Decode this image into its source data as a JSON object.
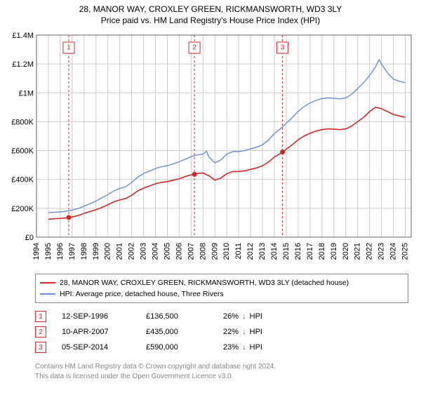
{
  "title": {
    "line1": "28, MANOR WAY, CROXLEY GREEN, RICKMANSWORTH, WD3 3LY",
    "line2": "Price paid vs. HM Land Registry's House Price Index (HPI)"
  },
  "chart": {
    "type": "line",
    "background_color": "#ffffff",
    "grid_color": "#cccccc",
    "axis_color": "#666666",
    "label_fontsize": 11,
    "x": {
      "min": 1994,
      "max": 2025.5,
      "ticks": [
        1994,
        1995,
        1996,
        1997,
        1998,
        1999,
        2000,
        2001,
        2002,
        2003,
        2004,
        2005,
        2006,
        2007,
        2008,
        2009,
        2010,
        2011,
        2012,
        2013,
        2014,
        2015,
        2016,
        2017,
        2018,
        2019,
        2020,
        2021,
        2022,
        2023,
        2024,
        2025
      ]
    },
    "y": {
      "min": 0,
      "max": 1400000,
      "ticks": [
        0,
        200000,
        400000,
        600000,
        800000,
        1000000,
        1200000,
        1400000
      ],
      "tick_labels": [
        "£0",
        "£200K",
        "£400K",
        "£600K",
        "£800K",
        "£1M",
        "£1.2M",
        "£1.4M"
      ]
    },
    "series": [
      {
        "name": "28, MANOR WAY, CROXLEY GREEN, RICKMANSWORTH, WD3 3LY (detached house)",
        "color": "#d62728",
        "line_width": 1.6,
        "points": [
          [
            1995.0,
            125000
          ],
          [
            1995.5,
            128000
          ],
          [
            1996.0,
            130000
          ],
          [
            1996.5,
            133000
          ],
          [
            1996.71,
            136500
          ],
          [
            1997.0,
            140000
          ],
          [
            1997.5,
            150000
          ],
          [
            1998.0,
            165000
          ],
          [
            1998.5,
            178000
          ],
          [
            1999.0,
            190000
          ],
          [
            1999.5,
            205000
          ],
          [
            2000.0,
            225000
          ],
          [
            2000.5,
            245000
          ],
          [
            2001.0,
            258000
          ],
          [
            2001.5,
            268000
          ],
          [
            2002.0,
            290000
          ],
          [
            2002.5,
            320000
          ],
          [
            2003.0,
            340000
          ],
          [
            2003.5,
            355000
          ],
          [
            2004.0,
            370000
          ],
          [
            2004.5,
            380000
          ],
          [
            2005.0,
            385000
          ],
          [
            2005.5,
            395000
          ],
          [
            2006.0,
            405000
          ],
          [
            2006.5,
            420000
          ],
          [
            2007.0,
            432000
          ],
          [
            2007.28,
            435000
          ],
          [
            2007.5,
            440000
          ],
          [
            2008.0,
            445000
          ],
          [
            2008.5,
            425000
          ],
          [
            2009.0,
            395000
          ],
          [
            2009.5,
            410000
          ],
          [
            2010.0,
            440000
          ],
          [
            2010.5,
            455000
          ],
          [
            2011.0,
            455000
          ],
          [
            2011.5,
            460000
          ],
          [
            2012.0,
            470000
          ],
          [
            2012.5,
            480000
          ],
          [
            2013.0,
            495000
          ],
          [
            2013.5,
            520000
          ],
          [
            2014.0,
            555000
          ],
          [
            2014.5,
            580000
          ],
          [
            2014.68,
            590000
          ],
          [
            2015.0,
            610000
          ],
          [
            2015.5,
            640000
          ],
          [
            2016.0,
            675000
          ],
          [
            2016.5,
            700000
          ],
          [
            2017.0,
            720000
          ],
          [
            2017.5,
            735000
          ],
          [
            2018.0,
            745000
          ],
          [
            2018.5,
            750000
          ],
          [
            2019.0,
            748000
          ],
          [
            2019.5,
            745000
          ],
          [
            2020.0,
            750000
          ],
          [
            2020.5,
            770000
          ],
          [
            2021.0,
            800000
          ],
          [
            2021.5,
            830000
          ],
          [
            2022.0,
            870000
          ],
          [
            2022.5,
            900000
          ],
          [
            2023.0,
            890000
          ],
          [
            2023.5,
            870000
          ],
          [
            2024.0,
            850000
          ],
          [
            2024.5,
            840000
          ],
          [
            2025.0,
            830000
          ]
        ]
      },
      {
        "name": "HPI: Average price, detached house, Three Rivers",
        "color": "#6b8fd6",
        "line_width": 1.4,
        "points": [
          [
            1995.0,
            170000
          ],
          [
            1995.5,
            172000
          ],
          [
            1996.0,
            175000
          ],
          [
            1996.5,
            180000
          ],
          [
            1997.0,
            188000
          ],
          [
            1997.5,
            198000
          ],
          [
            1998.0,
            215000
          ],
          [
            1998.5,
            232000
          ],
          [
            1999.0,
            250000
          ],
          [
            1999.5,
            272000
          ],
          [
            2000.0,
            295000
          ],
          [
            2000.5,
            320000
          ],
          [
            2001.0,
            338000
          ],
          [
            2001.5,
            350000
          ],
          [
            2002.0,
            378000
          ],
          [
            2002.5,
            415000
          ],
          [
            2003.0,
            440000
          ],
          [
            2003.5,
            458000
          ],
          [
            2004.0,
            475000
          ],
          [
            2004.5,
            488000
          ],
          [
            2005.0,
            495000
          ],
          [
            2005.5,
            508000
          ],
          [
            2006.0,
            522000
          ],
          [
            2006.5,
            540000
          ],
          [
            2007.0,
            558000
          ],
          [
            2007.5,
            570000
          ],
          [
            2008.0,
            575000
          ],
          [
            2008.3,
            595000
          ],
          [
            2008.5,
            555000
          ],
          [
            2009.0,
            515000
          ],
          [
            2009.5,
            535000
          ],
          [
            2010.0,
            575000
          ],
          [
            2010.5,
            593000
          ],
          [
            2011.0,
            593000
          ],
          [
            2011.5,
            600000
          ],
          [
            2012.0,
            612000
          ],
          [
            2012.5,
            623000
          ],
          [
            2013.0,
            640000
          ],
          [
            2013.5,
            673000
          ],
          [
            2014.0,
            718000
          ],
          [
            2014.5,
            750000
          ],
          [
            2015.0,
            790000
          ],
          [
            2015.5,
            828000
          ],
          [
            2016.0,
            872000
          ],
          [
            2016.5,
            905000
          ],
          [
            2017.0,
            930000
          ],
          [
            2017.5,
            948000
          ],
          [
            2018.0,
            960000
          ],
          [
            2018.5,
            965000
          ],
          [
            2019.0,
            962000
          ],
          [
            2019.5,
            958000
          ],
          [
            2020.0,
            965000
          ],
          [
            2020.5,
            990000
          ],
          [
            2021.0,
            1030000
          ],
          [
            2021.5,
            1070000
          ],
          [
            2022.0,
            1120000
          ],
          [
            2022.5,
            1180000
          ],
          [
            2022.8,
            1230000
          ],
          [
            2023.0,
            1200000
          ],
          [
            2023.5,
            1140000
          ],
          [
            2024.0,
            1095000
          ],
          [
            2024.5,
            1080000
          ],
          [
            2025.0,
            1070000
          ]
        ]
      }
    ],
    "markers": [
      {
        "n": "1",
        "x": 1996.71,
        "y": 136500
      },
      {
        "n": "2",
        "x": 2007.28,
        "y": 435000
      },
      {
        "n": "3",
        "x": 2014.68,
        "y": 590000
      }
    ]
  },
  "legend": {
    "items": [
      {
        "color": "#d62728",
        "label": "28, MANOR WAY, CROXLEY GREEN, RICKMANSWORTH, WD3 3LY (detached house)"
      },
      {
        "color": "#6b8fd6",
        "label": "HPI: Average price, detached house, Three Rivers"
      }
    ]
  },
  "sales": [
    {
      "n": "1",
      "date": "12-SEP-1996",
      "price": "£136,500",
      "delta": "26%",
      "arrow": "↓",
      "vs": "HPI"
    },
    {
      "n": "2",
      "date": "10-APR-2007",
      "price": "£435,000",
      "delta": "22%",
      "arrow": "↓",
      "vs": "HPI"
    },
    {
      "n": "3",
      "date": "05-SEP-2014",
      "price": "£590,000",
      "delta": "23%",
      "arrow": "↓",
      "vs": "HPI"
    }
  ],
  "attribution": {
    "line1": "Contains HM Land Registry data © Crown copyright and database right 2024.",
    "line2": "This data is licensed under the Open Government Licence v3.0."
  }
}
